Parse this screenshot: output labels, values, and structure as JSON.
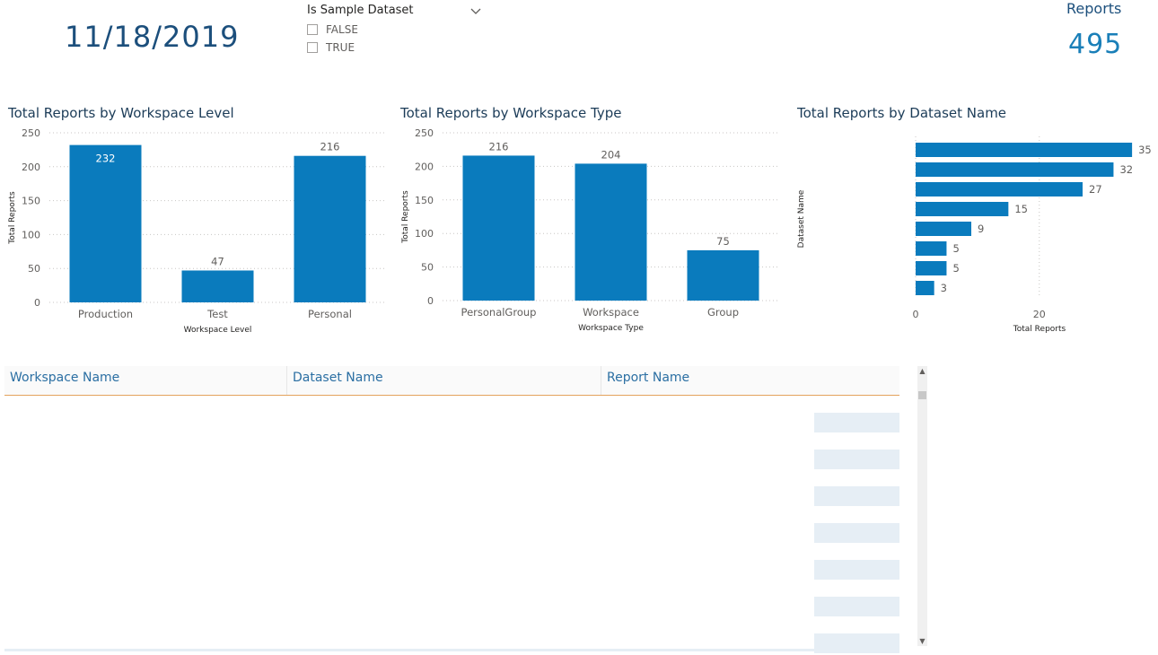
{
  "date_card": {
    "value": "11/18/2019"
  },
  "slicer": {
    "title": "Is Sample Dataset",
    "options": [
      {
        "label": "FALSE",
        "checked": false
      },
      {
        "label": "TRUE",
        "checked": false
      }
    ]
  },
  "kpi": {
    "label": "Reports",
    "value": "495"
  },
  "colors": {
    "bar": "#0a7bbd",
    "title": "#1c3c58",
    "kpi_value": "#1a7fb8",
    "header_border": "#e3a35c"
  },
  "chart_data": [
    {
      "type": "bar",
      "title": "Total Reports by Workspace Level",
      "categories": [
        "Production",
        "Test",
        "Personal"
      ],
      "values": [
        232,
        47,
        216
      ],
      "xlabel": "Workspace Level",
      "ylabel": "Total Reports",
      "ylim": [
        0,
        250
      ],
      "yticks": [
        0,
        50,
        100,
        150,
        200,
        250
      ],
      "grid": true,
      "data_labels_inside": [
        true,
        false,
        false
      ]
    },
    {
      "type": "bar",
      "title": "Total Reports by Workspace Type",
      "categories": [
        "PersonalGroup",
        "Workspace",
        "Group"
      ],
      "values": [
        216,
        204,
        75
      ],
      "xlabel": "Workspace Type",
      "ylabel": "Total Reports",
      "ylim": [
        0,
        250
      ],
      "yticks": [
        0,
        50,
        100,
        150,
        200,
        250
      ],
      "grid": true,
      "data_labels_inside": [
        false,
        false,
        false
      ]
    },
    {
      "type": "bar",
      "orientation": "horizontal",
      "title": "Total Reports by Dataset Name",
      "categories": [
        "",
        "",
        "",
        "",
        "",
        "",
        "",
        ""
      ],
      "values": [
        35,
        32,
        27,
        15,
        9,
        5,
        5,
        3
      ],
      "xlabel": "Total Reports",
      "ylabel": "Dataset Name",
      "xlim": [
        0,
        36
      ],
      "xticks": [
        0,
        20
      ],
      "grid": true
    }
  ],
  "table": {
    "columns": [
      {
        "label": "Workspace Name"
      },
      {
        "label": "Dataset Name"
      },
      {
        "label": "Report Name"
      }
    ]
  }
}
